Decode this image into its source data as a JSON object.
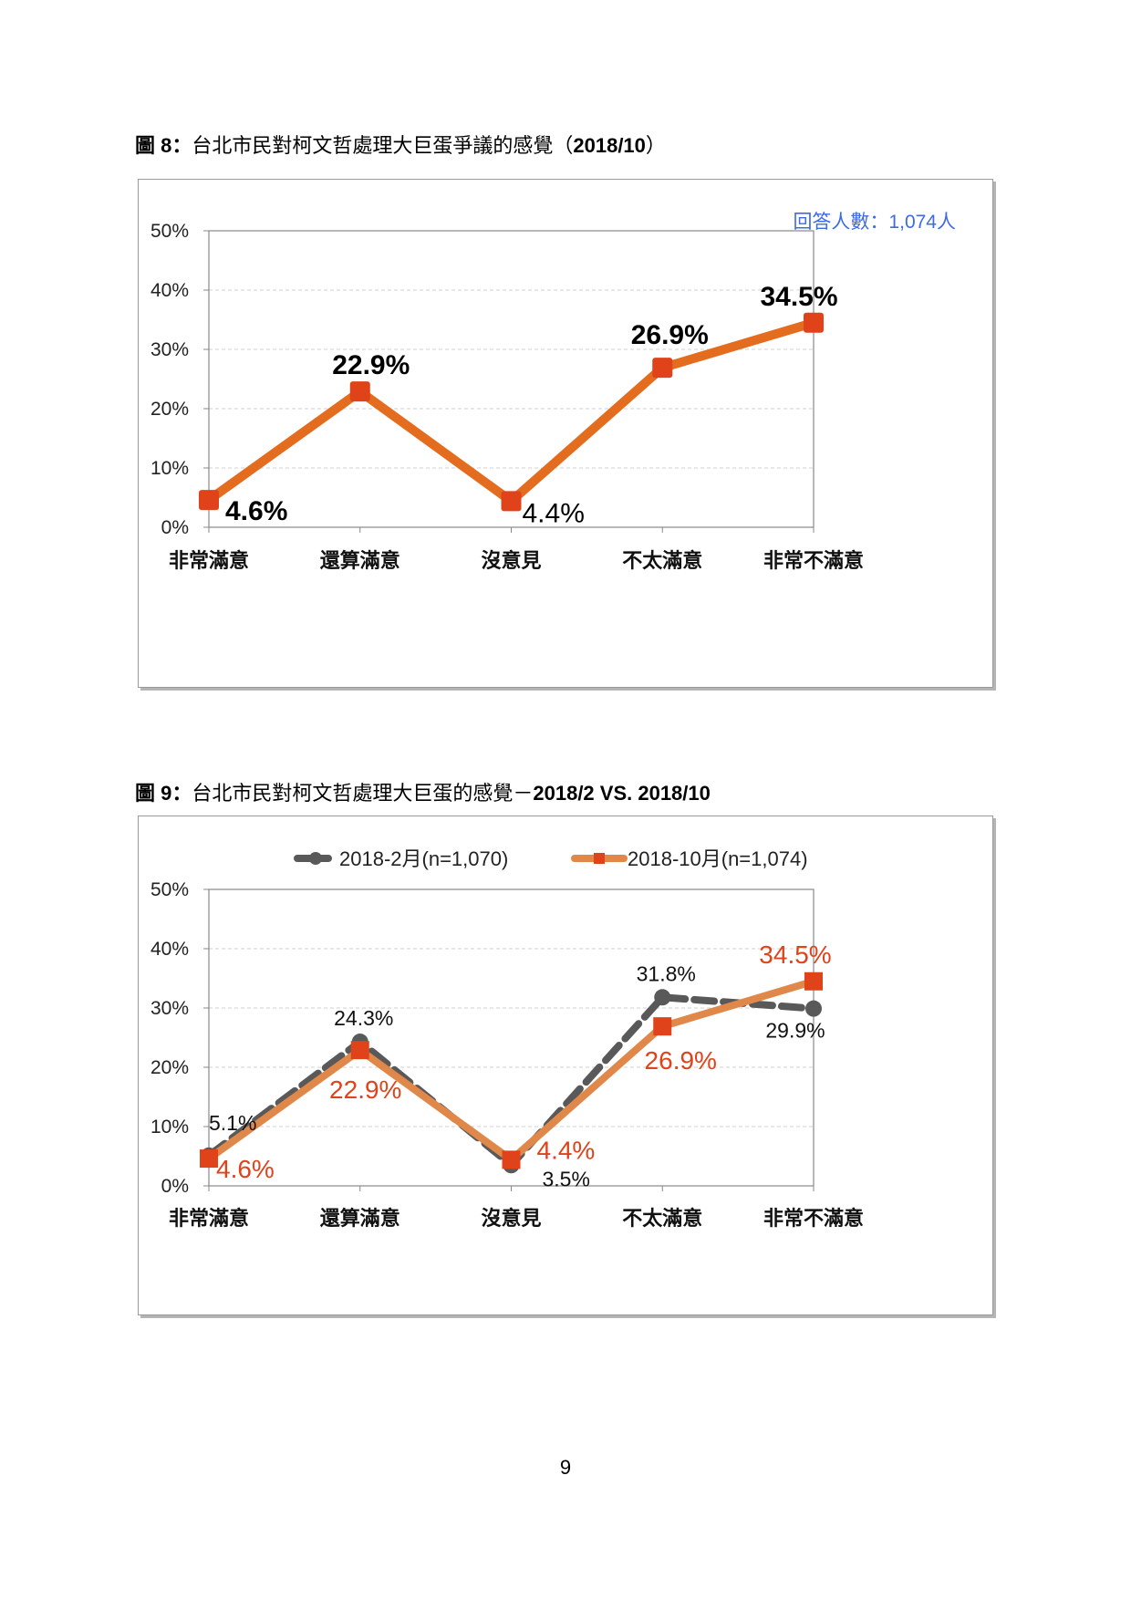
{
  "page_number": "9",
  "figure8": {
    "label": "圖 8：",
    "title_text": "台北市民對柯文哲處理大巨蛋爭議的感覺（",
    "title_date": "2018/10",
    "title_end": "）",
    "note": "回答人數：1,074人"
  },
  "figure9": {
    "label": "圖 9：",
    "title_text": "台北市民對柯文哲處理大巨蛋的感覺－",
    "title_date": "2018/2 VS. 2018/10"
  },
  "chart_data": [
    {
      "type": "line",
      "categories": [
        "非常滿意",
        "還算滿意",
        "沒意見",
        "不太滿意",
        "非常不滿意"
      ],
      "series": [
        {
          "values": [
            4.6,
            22.9,
            4.4,
            26.9,
            34.5
          ],
          "data_labels": [
            "4.6%",
            "22.9%",
            "4.4%",
            "26.9%",
            "34.5%"
          ],
          "color": "#e46c1e",
          "marker_color": "#e0421a"
        }
      ],
      "yticks": [
        "0%",
        "10%",
        "20%",
        "30%",
        "40%",
        "50%"
      ],
      "ylim": [
        0,
        50
      ],
      "grid": true
    },
    {
      "type": "line",
      "categories": [
        "非常滿意",
        "還算滿意",
        "沒意見",
        "不太滿意",
        "非常不滿意"
      ],
      "series": [
        {
          "name": "2018-2月(n=1,070)",
          "values": [
            5.1,
            24.3,
            3.5,
            31.8,
            29.9
          ],
          "data_labels": [
            "5.1%",
            "24.3%",
            "3.5%",
            "31.8%",
            "29.9%"
          ],
          "color": "#595959",
          "marker_color": "#595959",
          "style": "dashed",
          "marker": "circle"
        },
        {
          "name": "2018-10月(n=1,074)",
          "values": [
            4.6,
            22.9,
            4.4,
            26.9,
            34.5
          ],
          "data_labels": [
            "4.6%",
            "22.9%",
            "4.4%",
            "26.9%",
            "34.5%"
          ],
          "color": "#e0884a",
          "marker_color": "#e0421a",
          "style": "solid",
          "marker": "square"
        }
      ],
      "yticks": [
        "0%",
        "10%",
        "20%",
        "30%",
        "40%",
        "50%"
      ],
      "ylim": [
        0,
        50
      ],
      "grid": true,
      "legend": "top-center"
    }
  ]
}
